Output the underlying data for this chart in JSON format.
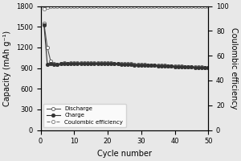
{
  "discharge_cycles": [
    1,
    2,
    3,
    4,
    5,
    6,
    7,
    8,
    9,
    10,
    11,
    12,
    13,
    14,
    15,
    16,
    17,
    18,
    19,
    20,
    21,
    22,
    23,
    24,
    25,
    26,
    27,
    28,
    29,
    30,
    31,
    32,
    33,
    34,
    35,
    36,
    37,
    38,
    39,
    40,
    41,
    42,
    43,
    44,
    45,
    46,
    47,
    48,
    49,
    50
  ],
  "discharge_values": [
    1550,
    1200,
    1000,
    960,
    950,
    970,
    975,
    970,
    975,
    975,
    975,
    975,
    975,
    975,
    975,
    975,
    975,
    975,
    975,
    975,
    975,
    970,
    970,
    965,
    965,
    960,
    960,
    955,
    955,
    950,
    950,
    948,
    945,
    945,
    942,
    940,
    938,
    935,
    933,
    930,
    928,
    926,
    924,
    922,
    920,
    918,
    916,
    914,
    912,
    910
  ],
  "charge_cycles": [
    1,
    2,
    3,
    4,
    5,
    6,
    7,
    8,
    9,
    10,
    11,
    12,
    13,
    14,
    15,
    16,
    17,
    18,
    19,
    20,
    21,
    22,
    23,
    24,
    25,
    26,
    27,
    28,
    29,
    30,
    31,
    32,
    33,
    34,
    35,
    36,
    37,
    38,
    39,
    40,
    41,
    42,
    43,
    44,
    45,
    46,
    47,
    48,
    49,
    50
  ],
  "charge_values": [
    1530,
    950,
    960,
    955,
    950,
    965,
    968,
    965,
    968,
    968,
    968,
    968,
    968,
    968,
    968,
    968,
    968,
    968,
    968,
    968,
    968,
    963,
    963,
    958,
    958,
    953,
    953,
    948,
    948,
    943,
    943,
    940,
    938,
    938,
    935,
    933,
    930,
    928,
    926,
    923,
    921,
    919,
    917,
    915,
    913,
    911,
    909,
    907,
    905,
    903
  ],
  "ce_cycles": [
    1,
    2,
    3,
    4,
    5,
    6,
    7,
    8,
    9,
    10,
    11,
    12,
    13,
    14,
    15,
    16,
    17,
    18,
    19,
    20,
    21,
    22,
    23,
    24,
    25,
    26,
    27,
    28,
    29,
    30,
    31,
    32,
    33,
    34,
    35,
    36,
    37,
    38,
    39,
    40,
    41,
    42,
    43,
    44,
    45,
    46,
    47,
    48,
    49,
    50
  ],
  "ce_values": [
    98,
    99,
    99.5,
    99.5,
    99.5,
    99.5,
    99.5,
    99.5,
    99.5,
    99.5,
    99.5,
    99.5,
    99.5,
    99.5,
    99.5,
    99.5,
    99.5,
    99.5,
    99.5,
    99.5,
    99.5,
    99.5,
    99.5,
    99.5,
    99.5,
    99.5,
    99.5,
    99.5,
    99.5,
    99.5,
    99.5,
    99.5,
    99.5,
    99.5,
    99.5,
    99.5,
    99.5,
    99.5,
    99.5,
    99.5,
    99.5,
    99.5,
    99.5,
    99.5,
    99.5,
    99.5,
    99.5,
    99.5,
    99.5,
    99.5
  ],
  "ylabel_left": "Capacity (mAh g⁻¹)",
  "ylabel_right": "Coulombic efficiency",
  "xlabel": "Cycle number",
  "ylim_left": [
    0,
    1800
  ],
  "ylim_right": [
    0,
    100
  ],
  "xlim": [
    0,
    50
  ],
  "yticks_left": [
    0,
    300,
    600,
    900,
    1200,
    1500,
    1800
  ],
  "yticks_right": [
    0,
    20,
    40,
    60,
    80,
    100
  ],
  "xticks": [
    0,
    10,
    20,
    30,
    40,
    50
  ],
  "legend_labels": [
    "Discharge",
    "Charge",
    "Coulombic efficiency"
  ],
  "background_color": "#f0f0f0",
  "line_color": "#333333"
}
